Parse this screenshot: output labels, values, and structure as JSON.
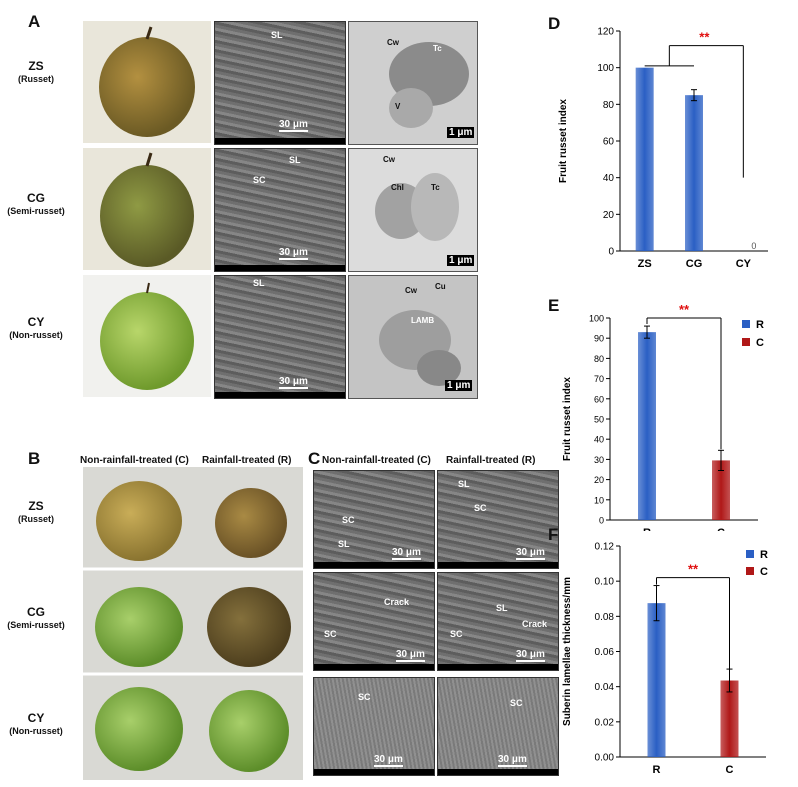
{
  "panels": {
    "a": "A",
    "b": "B",
    "c": "C",
    "d": "D",
    "e": "E",
    "f": "F"
  },
  "panel_a": {
    "rows": [
      {
        "name": "ZS",
        "sub": "(Russet)"
      },
      {
        "name": "CG",
        "sub": "(Semi-russet)"
      },
      {
        "name": "CY",
        "sub": "(Non-russet)"
      }
    ],
    "sem_labels": [
      [
        "SL"
      ],
      [
        "SL",
        "SC"
      ],
      [
        "SL"
      ]
    ],
    "tem_labels": [
      [
        "Cw",
        "Tc",
        "V"
      ],
      [
        "Cw",
        "Chl",
        "Tc"
      ],
      [
        "Cw",
        "Cu",
        "LAMB"
      ]
    ],
    "sem_scale": "30 μm",
    "tem_scale": "1 μm"
  },
  "panel_b": {
    "col_headers": [
      "Non-rainfall-treated (C)",
      "Rainfall-treated (R)"
    ],
    "rows": [
      {
        "name": "ZS",
        "sub": "(Russet)"
      },
      {
        "name": "CG",
        "sub": "(Semi-russet)"
      },
      {
        "name": "CY",
        "sub": "(Non-russet)"
      }
    ]
  },
  "panel_c": {
    "col_headers": [
      "Non-rainfall-treated (C)",
      "Rainfall-treated (R)"
    ],
    "labels": [
      [
        [
          "SC",
          "SL"
        ],
        [
          "SL",
          "SC"
        ]
      ],
      [
        [
          "Crack",
          "SC"
        ],
        [
          "SL",
          "SC",
          "Crack"
        ]
      ],
      [
        [
          "SC"
        ],
        [
          "SC"
        ]
      ]
    ],
    "scale": "30 μm"
  },
  "chart_data": [
    {
      "type": "bar",
      "categories": [
        "ZS",
        "CG",
        "CY"
      ],
      "values": [
        100,
        85,
        0
      ],
      "errors": [
        0,
        3,
        0
      ],
      "value_labels": [
        "",
        "",
        "0"
      ],
      "ylabel": "Fruit russet index",
      "ylim": [
        0,
        120
      ],
      "yticks": [
        0,
        20,
        40,
        60,
        80,
        100,
        120
      ],
      "significance": "**",
      "colors": [
        "#2a5fc4"
      ],
      "grid": false
    },
    {
      "type": "bar",
      "categories": [
        "R",
        "C"
      ],
      "values": [
        93,
        29.5
      ],
      "errors": [
        3,
        5
      ],
      "ylabel": "Fruit russet index",
      "ylim": [
        0,
        100
      ],
      "yticks": [
        0,
        10,
        20,
        30,
        40,
        50,
        60,
        70,
        80,
        90,
        100
      ],
      "significance": "**",
      "legend": [
        {
          "name": "R",
          "color": "#2a5fc4"
        },
        {
          "name": "C",
          "color": "#b01818"
        }
      ],
      "legend_position": "top-right",
      "grid": false
    },
    {
      "type": "bar",
      "categories": [
        "R",
        "C"
      ],
      "values": [
        0.0875,
        0.0435
      ],
      "errors": [
        0.01,
        0.0065
      ],
      "ylabel": "Suberin lamellae thickness/mm",
      "ylim": [
        0,
        0.12
      ],
      "yticks": [
        "0.00",
        "0.02",
        "0.04",
        "0.06",
        "0.08",
        "0.10",
        "0.12"
      ],
      "significance": "**",
      "legend": [
        {
          "name": "R",
          "color": "#2a5fc4"
        },
        {
          "name": "C",
          "color": "#b01818"
        }
      ],
      "legend_position": "top-right",
      "grid": false
    }
  ]
}
